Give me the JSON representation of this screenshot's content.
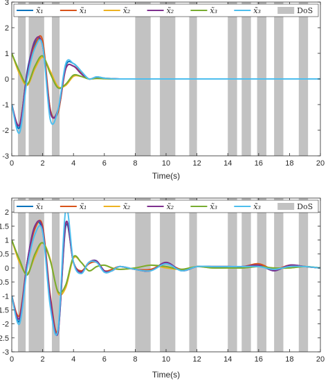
{
  "chart_data": [
    {
      "type": "line",
      "xlabel": "Time(s)",
      "ylabel": "",
      "xlim": [
        0,
        20
      ],
      "ylim": [
        -3,
        3
      ],
      "xticks": [
        "0",
        "2",
        "4",
        "6",
        "8",
        "10",
        "12",
        "14",
        "16",
        "18",
        "20"
      ],
      "yticks": [
        "-3",
        "-2",
        "-1",
        "0",
        "1",
        "2",
        "3"
      ],
      "grid": false,
      "legend_position": "top",
      "dos_intervals": [
        [
          0.4,
          0.9
        ],
        [
          1.1,
          2.1
        ],
        [
          2.6,
          3.1
        ],
        [
          8.0,
          9.0
        ],
        [
          9.6,
          10.6
        ],
        [
          11.5,
          12.0
        ],
        [
          14.0,
          14.6
        ],
        [
          14.9,
          15.5
        ],
        [
          15.9,
          16.5
        ],
        [
          17.0,
          17.6
        ],
        [
          18.6,
          19.2
        ]
      ],
      "series": [
        {
          "name": "x̃₁",
          "color": "#0072BD",
          "x": [
            0,
            0.5,
            1,
            1.5,
            2,
            2.5,
            3,
            3.5,
            4,
            4.5,
            5,
            5.5,
            6,
            6.5,
            7,
            8,
            20
          ],
          "values": [
            -1.0,
            -1.9,
            0.3,
            1.4,
            1.3,
            -1.2,
            -1.3,
            0.5,
            0.6,
            0.3,
            0.0,
            0.08,
            0.03,
            0.01,
            0,
            0,
            0
          ]
        },
        {
          "name": "x̃₁",
          "color": "#D95319",
          "x": [
            0,
            0.5,
            1,
            1.5,
            2,
            2.5,
            3,
            3.5,
            4,
            4.5,
            5,
            5.5,
            6,
            6.5,
            7,
            8,
            20
          ],
          "values": [
            -1.0,
            -1.8,
            0.2,
            1.3,
            1.5,
            -1.2,
            -1.3,
            0.4,
            0.5,
            0.25,
            0.0,
            0.07,
            0.03,
            0.01,
            0,
            0,
            0
          ]
        },
        {
          "name": "x̃₂",
          "color": "#EDB120",
          "x": [
            0,
            0.5,
            1,
            1.5,
            2,
            2.5,
            3,
            3.5,
            4,
            4.5,
            5,
            5.5,
            6,
            6.5,
            7,
            8,
            20
          ],
          "values": [
            1.0,
            0.2,
            -0.25,
            0.4,
            0.85,
            0.3,
            -0.3,
            -0.25,
            0.1,
            0.1,
            0.0,
            0.02,
            0.01,
            0,
            0,
            0,
            0
          ]
        },
        {
          "name": "x̃₂",
          "color": "#7E2F8E",
          "x": [
            0,
            0.5,
            1,
            1.5,
            2,
            2.5,
            3,
            3.5,
            4,
            4.5,
            5,
            5.5,
            6,
            6.5,
            7,
            8,
            20
          ],
          "values": [
            -1.0,
            -1.8,
            0.2,
            1.5,
            1.3,
            -1.3,
            -1.2,
            0.4,
            0.5,
            0.2,
            0.0,
            0.06,
            0.02,
            0.01,
            0,
            0,
            0
          ]
        },
        {
          "name": "x̃₃",
          "color": "#77AC30",
          "x": [
            0,
            0.5,
            1,
            1.5,
            2,
            2.5,
            3,
            3.5,
            4,
            4.5,
            5,
            5.5,
            6,
            6.5,
            7,
            8,
            20
          ],
          "values": [
            1.0,
            0.3,
            -0.2,
            0.5,
            0.9,
            0.2,
            -0.35,
            -0.2,
            0.15,
            0.1,
            0.0,
            0.02,
            0.01,
            0,
            0,
            0,
            0
          ]
        },
        {
          "name": "x̃₃",
          "color": "#4DBEEE",
          "x": [
            0,
            0.5,
            1,
            1.5,
            2,
            2.5,
            3,
            3.5,
            4,
            4.5,
            5,
            5.5,
            6,
            6.5,
            7,
            8,
            20
          ],
          "values": [
            -1.0,
            -2.1,
            0.0,
            1.2,
            1.3,
            -1.6,
            -1.2,
            0.6,
            0.6,
            0.3,
            0.0,
            0.08,
            0.03,
            0.01,
            0,
            0,
            0
          ]
        }
      ],
      "legend_entries": [
        "x̃₁",
        "x̃₁",
        "x̃₂",
        "x̃₂",
        "x̃₃",
        "x̃₃",
        "DoS"
      ]
    },
    {
      "type": "line",
      "xlabel": "Time(s)",
      "ylabel": "",
      "xlim": [
        0,
        20
      ],
      "ylim": [
        -3,
        2.5
      ],
      "xticks": [
        "0",
        "2",
        "4",
        "6",
        "8",
        "10",
        "12",
        "14",
        "16",
        "18",
        "20"
      ],
      "yticks": [
        "-3",
        "-2.5",
        "-2",
        "-1.5",
        "-1",
        "-0.5",
        "0",
        "0.5",
        "1",
        "1.5",
        "2"
      ],
      "grid": false,
      "legend_position": "top",
      "dos_intervals": [
        [
          0.4,
          0.9
        ],
        [
          1.1,
          2.1
        ],
        [
          2.6,
          3.1
        ],
        [
          8.0,
          9.0
        ],
        [
          9.6,
          10.6
        ],
        [
          11.5,
          12.0
        ],
        [
          14.0,
          14.6
        ],
        [
          14.9,
          15.5
        ],
        [
          15.9,
          16.5
        ],
        [
          17.0,
          17.6
        ],
        [
          18.6,
          19.2
        ]
      ],
      "series": [
        {
          "name": "x̄₁",
          "color": "#0072BD",
          "x": [
            0,
            0.5,
            1,
            1.5,
            2,
            2.5,
            3,
            3.5,
            4,
            4.5,
            5,
            5.5,
            6,
            6.5,
            7,
            8,
            9,
            10,
            11,
            12,
            13,
            14,
            15,
            16,
            17,
            18,
            19,
            20
          ],
          "values": [
            -1.0,
            -1.9,
            0.2,
            1.5,
            1.3,
            -1.1,
            -2.3,
            1.5,
            0.2,
            -0.15,
            0.2,
            0.25,
            -0.15,
            -0.1,
            0.05,
            -0.05,
            -0.1,
            0.2,
            -0.1,
            0.05,
            0.05,
            0.05,
            0.05,
            0.1,
            -0.1,
            0.1,
            0.05,
            0.0
          ]
        },
        {
          "name": "x̃₁",
          "color": "#D95319",
          "x": [
            0,
            0.5,
            1,
            1.5,
            2,
            2.5,
            3,
            3.5,
            4,
            4.5,
            5,
            5.5,
            6,
            6.5,
            7,
            8,
            9,
            10,
            11,
            12,
            13,
            14,
            15,
            16,
            17,
            18,
            19,
            20
          ],
          "values": [
            -1.0,
            -1.7,
            0.2,
            1.4,
            1.5,
            -1.0,
            -2.2,
            1.6,
            0.2,
            -0.1,
            0.15,
            0.2,
            -0.1,
            -0.05,
            0.05,
            -0.05,
            -0.05,
            0.15,
            -0.05,
            0.05,
            0.05,
            0.05,
            0.05,
            0.15,
            -0.05,
            0.1,
            0.05,
            0.0
          ]
        },
        {
          "name": "x̃₂",
          "color": "#EDB120",
          "x": [
            0,
            0.5,
            1,
            1.5,
            2,
            2.5,
            3,
            3.5,
            4,
            4.5,
            5,
            5.5,
            6,
            6.5,
            7,
            8,
            9,
            10,
            11,
            12,
            13,
            14,
            15,
            16,
            17,
            18,
            19,
            20
          ],
          "values": [
            1.0,
            0.2,
            -0.2,
            0.4,
            0.9,
            0.3,
            -0.9,
            -0.7,
            0.35,
            0.2,
            -0.1,
            0.05,
            0.1,
            0.0,
            -0.05,
            0.0,
            0.1,
            0.0,
            -0.05,
            0.05,
            0.0,
            0.0,
            0.0,
            0.05,
            0.0,
            0.0,
            0.05,
            0.0
          ]
        },
        {
          "name": "x̃₂",
          "color": "#7E2F8E",
          "x": [
            0,
            0.5,
            1,
            1.5,
            2,
            2.5,
            3,
            3.5,
            4,
            4.5,
            5,
            5.5,
            6,
            6.5,
            7,
            8,
            9,
            10,
            11,
            12,
            13,
            14,
            15,
            16,
            17,
            18,
            19,
            20
          ],
          "values": [
            -1.0,
            -1.8,
            0.2,
            1.5,
            1.4,
            -1.1,
            -2.3,
            1.6,
            0.2,
            -0.15,
            0.2,
            0.25,
            -0.1,
            -0.1,
            0.05,
            -0.05,
            -0.1,
            0.2,
            -0.1,
            0.05,
            0.05,
            0.05,
            0.05,
            0.1,
            -0.1,
            0.1,
            0.05,
            0.0
          ]
        },
        {
          "name": "x̃₃",
          "color": "#77AC30",
          "x": [
            0,
            0.5,
            1,
            1.5,
            2,
            2.5,
            3,
            3.5,
            4,
            4.5,
            5,
            5.5,
            6,
            6.5,
            7,
            8,
            9,
            10,
            11,
            12,
            13,
            14,
            15,
            16,
            17,
            18,
            19,
            20
          ],
          "values": [
            1.0,
            0.3,
            -0.25,
            0.5,
            0.9,
            0.25,
            -0.85,
            -0.6,
            0.4,
            0.2,
            -0.1,
            0.05,
            0.1,
            0.0,
            -0.05,
            0.0,
            0.1,
            0.05,
            -0.05,
            0.05,
            0.0,
            0.0,
            0.0,
            0.05,
            0.0,
            0.0,
            0.05,
            0.0
          ]
        },
        {
          "name": "x̃₃",
          "color": "#4DBEEE",
          "x": [
            0,
            0.5,
            1,
            1.5,
            2,
            2.5,
            3,
            3.5,
            4,
            4.5,
            5,
            5.5,
            6,
            6.5,
            7,
            8,
            9,
            10,
            11,
            12,
            13,
            14,
            15,
            16,
            17,
            18,
            19,
            20
          ],
          "values": [
            -1.0,
            -2.0,
            0.0,
            1.2,
            1.3,
            -1.4,
            -2.2,
            2.1,
            0.2,
            -0.2,
            0.2,
            0.2,
            -0.15,
            -0.1,
            0.05,
            -0.05,
            -0.1,
            0.15,
            -0.1,
            0.05,
            0.05,
            0.05,
            0.05,
            0.05,
            -0.05,
            0.05,
            0.05,
            0.0
          ]
        }
      ],
      "legend_entries": [
        "x̄₁",
        "x̃₁",
        "x̃₂",
        "x̃₂",
        "x̃₃",
        "x̃₃",
        "DoS"
      ]
    }
  ]
}
